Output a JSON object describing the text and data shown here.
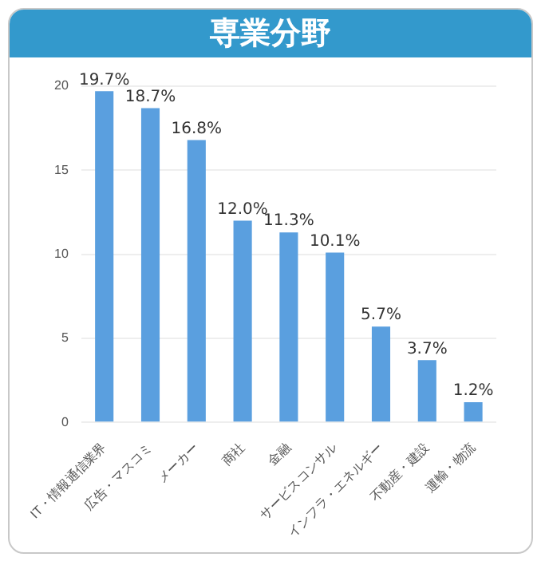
{
  "chart_data": {
    "type": "bar",
    "title": "専業分野",
    "categories": [
      "IT・情報通信業界",
      "広告・マスコミ",
      "メーカー",
      "商社",
      "金融",
      "サービスコンサル",
      "インフラ・エネルギー",
      "不動産・建設",
      "運輸・物流"
    ],
    "values": [
      19.7,
      18.7,
      16.8,
      12.0,
      11.3,
      10.1,
      5.7,
      3.7,
      1.2
    ],
    "value_labels": [
      "19.7%",
      "18.7%",
      "16.8%",
      "12.0%",
      "11.3%",
      "10.1%",
      "5.7%",
      "3.7%",
      "1.2%"
    ],
    "color": "#5a9fdf",
    "ylim": [
      0,
      20
    ],
    "yticks": [
      0,
      5,
      10,
      15,
      20
    ],
    "grid": "y",
    "legend": false
  }
}
